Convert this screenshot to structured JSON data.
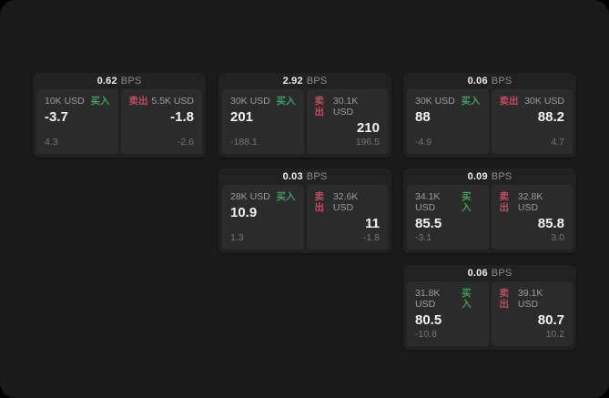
{
  "colors": {
    "outer_bg": "#000000",
    "window_bg": "#1a1a1a",
    "card_bg": "#212121",
    "panel_bg": "#2b2b2b",
    "text_primary": "#ededed",
    "text_secondary": "#9c9c9c",
    "text_muted": "#757575",
    "buy_green": "#3f9e63",
    "sell_red": "#c44a63"
  },
  "labels": {
    "bps_unit": "BPS",
    "buy": "买入",
    "sell": "卖出"
  },
  "cards": [
    {
      "bps": "0.62",
      "buy": {
        "size": "10K USD",
        "price": "-3.7",
        "delta": "4.3"
      },
      "sell": {
        "size": "5.5K USD",
        "price": "-1.8",
        "delta": "-2.6"
      }
    },
    {
      "bps": "2.92",
      "buy": {
        "size": "30K USD",
        "price": "201",
        "delta": "-188.1"
      },
      "sell": {
        "size": "30.1K USD",
        "price": "210",
        "delta": "196.5"
      }
    },
    {
      "bps": "0.06",
      "buy": {
        "size": "30K USD",
        "price": "88",
        "delta": "-4.9"
      },
      "sell": {
        "size": "30K USD",
        "price": "88.2",
        "delta": "4.7"
      }
    },
    {
      "bps": "0.03",
      "buy": {
        "size": "28K USD",
        "price": "10.9",
        "delta": "1.3"
      },
      "sell": {
        "size": "32.6K USD",
        "price": "11",
        "delta": "-1.8"
      }
    },
    {
      "bps": "0.09",
      "buy": {
        "size": "34.1K USD",
        "price": "85.5",
        "delta": "-3.1"
      },
      "sell": {
        "size": "32.8K USD",
        "price": "85.8",
        "delta": "3.0"
      }
    },
    {
      "bps": "0.06",
      "buy": {
        "size": "31.8K USD",
        "price": "80.5",
        "delta": "-10.8"
      },
      "sell": {
        "size": "39.1K USD",
        "price": "80.7",
        "delta": "10.2"
      }
    }
  ]
}
